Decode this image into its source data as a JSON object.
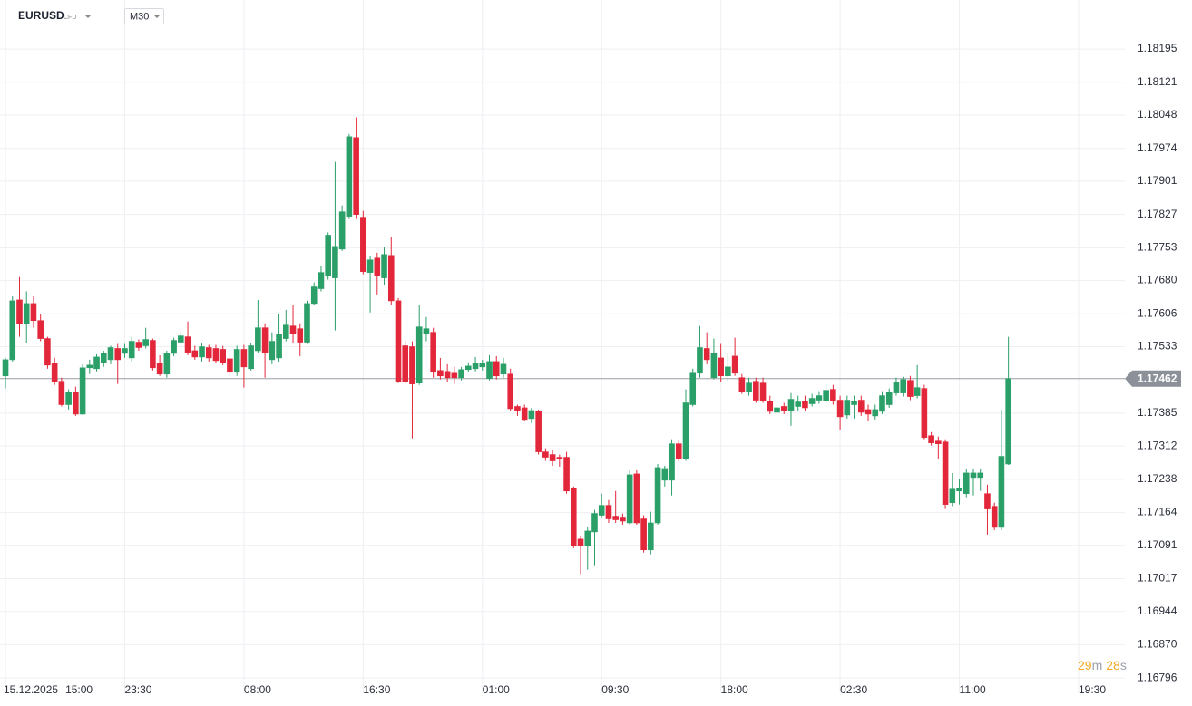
{
  "header": {
    "symbol": "EURUSD",
    "instrument": "CFD",
    "timeframe": "M30"
  },
  "countdown": {
    "minutes": "29",
    "minutes_unit": "m",
    "seconds": "28",
    "seconds_unit": "s"
  },
  "chart_data": {
    "type": "candlestick",
    "date_label": "15.12.2025",
    "up_color": "#2b9f68",
    "down_color": "#e3273b",
    "grid": true,
    "last_price": 1.17462,
    "xlim": [
      -0.78,
      159.6
    ],
    "ylim": [
      1.16762,
      1.18304
    ],
    "xticks": [
      {
        "value": 0,
        "label": "15:00"
      },
      {
        "value": 17,
        "label": "23:30"
      },
      {
        "value": 34,
        "label": "08:00"
      },
      {
        "value": 51,
        "label": "16:30"
      },
      {
        "value": 68,
        "label": "01:00"
      },
      {
        "value": 85,
        "label": "09:30"
      },
      {
        "value": 102,
        "label": "18:00"
      },
      {
        "value": 119,
        "label": "02:30"
      },
      {
        "value": 136,
        "label": "11:00"
      },
      {
        "value": 153,
        "label": "19:30"
      }
    ],
    "yticks": [
      1.18195,
      1.18121,
      1.18048,
      1.17974,
      1.17901,
      1.17827,
      1.17753,
      {
        "value": 1.1768,
        "label": "1.17680"
      },
      1.17606,
      1.17533,
      1.17385,
      1.17312,
      1.17238,
      1.17164,
      1.17091,
      1.17017,
      1.16944,
      {
        "value": 1.1687,
        "label": "1.16870"
      },
      1.16796
    ],
    "x": [
      0,
      1,
      2,
      3,
      4,
      5,
      6,
      7,
      8,
      9,
      10,
      11,
      12,
      13,
      14,
      15,
      16,
      17,
      18,
      19,
      20,
      21,
      22,
      23,
      24,
      25,
      26,
      27,
      28,
      29,
      30,
      31,
      32,
      33,
      34,
      35,
      36,
      37,
      38,
      39,
      40,
      41,
      42,
      43,
      44,
      45,
      46,
      47,
      48,
      49,
      50,
      51,
      52,
      53,
      54,
      55,
      56,
      57,
      58,
      59,
      60,
      61,
      62,
      63,
      64,
      65,
      66,
      67,
      68,
      69,
      70,
      71,
      72,
      73,
      74,
      75,
      76,
      77,
      78,
      79,
      80,
      81,
      82,
      83,
      84,
      85,
      86,
      87,
      88,
      89,
      90,
      91,
      92,
      93,
      94,
      95,
      96,
      97,
      98,
      99,
      100,
      101,
      102,
      103,
      104,
      105,
      106,
      107,
      108,
      109,
      110,
      111,
      112,
      113,
      114,
      115,
      116,
      117,
      118,
      119,
      120,
      121,
      122,
      123,
      124,
      125,
      126,
      127,
      128,
      129,
      130,
      131,
      132,
      133,
      134,
      135,
      136,
      137,
      138,
      139,
      140,
      141,
      142,
      143
    ],
    "open": [
      1.17468,
      1.17504,
      1.17637,
      1.17585,
      1.17629,
      1.17591,
      1.17551,
      1.17496,
      1.17456,
      1.17404,
      1.17432,
      1.17383,
      1.17486,
      1.17484,
      1.17498,
      1.17504,
      1.17529,
      1.17518,
      1.17508,
      1.17543,
      1.17535,
      1.17547,
      1.17496,
      1.17472,
      1.17518,
      1.17543,
      1.17555,
      1.17524,
      1.1751,
      1.17531,
      1.17529,
      1.17527,
      1.17506,
      1.17476,
      1.17527,
      1.17484,
      1.17524,
      1.17575,
      1.17504,
      1.17508,
      1.17551,
      1.17579,
      1.17573,
      1.17543,
      1.17629,
      1.17662,
      1.1769,
      1.17686,
      1.1775,
      1.17823,
      1.17998,
      1.17821,
      1.17698,
      1.1773,
      1.17686,
      1.17736,
      1.17635,
      1.17535,
      1.17533,
      1.17452,
      1.17561,
      1.17565,
      1.1748,
      1.17478,
      1.17474,
      1.17464,
      1.17482,
      1.17484,
      1.17488,
      1.17462,
      1.175,
      1.17472,
      1.17472,
      1.174,
      1.17397,
      1.17373,
      1.17389,
      1.17299,
      1.17293,
      1.17287,
      1.17287,
      1.17218,
      1.17105,
      1.17091,
      1.17121,
      1.17158,
      1.1718,
      1.17156,
      1.17152,
      1.17141,
      1.1725,
      1.1715,
      1.17081,
      1.17141,
      1.17236,
      1.17236,
      1.17317,
      1.17283,
      1.17404,
      1.17474,
      1.17529,
      1.17464,
      1.17508,
      1.17468,
      1.17512,
      1.17464,
      1.17432,
      1.17456,
      1.17452,
      1.17412,
      1.17387,
      1.174,
      1.17391,
      1.174,
      1.17412,
      1.17406,
      1.17414,
      1.17412,
      1.17438,
      1.17414,
      1.17381,
      1.17404,
      1.17414,
      1.17393,
      1.17379,
      1.17389,
      1.17404,
      1.1743,
      1.1743,
      1.17458,
      1.17424,
      1.1744,
      1.17335,
      1.17323,
      1.17321,
      1.17186,
      1.17212,
      1.17206,
      1.17242,
      1.17242,
      1.17206,
      1.17178,
      1.17131,
      1.17272
    ],
    "high": [
      1.17508,
      1.17645,
      1.17688,
      1.17656,
      1.17645,
      1.17605,
      1.17555,
      1.17508,
      1.17464,
      1.17438,
      1.17444,
      1.17494,
      1.17504,
      1.17516,
      1.17524,
      1.17535,
      1.17539,
      1.17539,
      1.17555,
      1.17549,
      1.17575,
      1.17551,
      1.17514,
      1.17524,
      1.17553,
      1.17565,
      1.17589,
      1.17535,
      1.17541,
      1.17537,
      1.17537,
      1.17535,
      1.17512,
      1.17535,
      1.17537,
      1.17541,
      1.17637,
      1.17585,
      1.17565,
      1.17605,
      1.17615,
      1.17625,
      1.17585,
      1.17635,
      1.17676,
      1.17712,
      1.17787,
      1.17944,
      1.17847,
      1.18006,
      1.18043,
      1.17835,
      1.17734,
      1.17742,
      1.17754,
      1.17776,
      1.17641,
      1.17545,
      1.17545,
      1.17625,
      1.17599,
      1.17575,
      1.17508,
      1.17494,
      1.17488,
      1.17488,
      1.17498,
      1.1751,
      1.17504,
      1.17514,
      1.17512,
      1.17508,
      1.17484,
      1.17404,
      1.17404,
      1.17397,
      1.17393,
      1.17307,
      1.17303,
      1.17293,
      1.17299,
      1.17222,
      1.17113,
      1.17131,
      1.1717,
      1.17206,
      1.17192,
      1.17212,
      1.17162,
      1.17258,
      1.17258,
      1.17158,
      1.17166,
      1.17272,
      1.17268,
      1.17327,
      1.17327,
      1.17438,
      1.17484,
      1.17579,
      1.17565,
      1.17551,
      1.17539,
      1.1752,
      1.17553,
      1.17472,
      1.17464,
      1.17464,
      1.17464,
      1.17424,
      1.17412,
      1.17408,
      1.1743,
      1.17424,
      1.17424,
      1.17428,
      1.17434,
      1.17448,
      1.17448,
      1.17424,
      1.17424,
      1.17424,
      1.17424,
      1.17404,
      1.17404,
      1.17434,
      1.1744,
      1.17464,
      1.17466,
      1.17468,
      1.17492,
      1.17448,
      1.17343,
      1.17333,
      1.17327,
      1.17252,
      1.17238,
      1.17262,
      1.17262,
      1.17262,
      1.17226,
      1.17186,
      1.17393,
      1.17555
    ],
    "low": [
      1.1744,
      1.175,
      1.17555,
      1.17541,
      1.17575,
      1.17545,
      1.17484,
      1.17448,
      1.174,
      1.17393,
      1.17379,
      1.17381,
      1.17472,
      1.17478,
      1.17488,
      1.17494,
      1.1745,
      1.17508,
      1.175,
      1.17524,
      1.17529,
      1.1748,
      1.17468,
      1.17464,
      1.17512,
      1.17539,
      1.17514,
      1.17504,
      1.175,
      1.175,
      1.17496,
      1.17492,
      1.17468,
      1.17468,
      1.17442,
      1.1748,
      1.1752,
      1.17464,
      1.17494,
      1.175,
      1.17545,
      1.17541,
      1.17512,
      1.17539,
      1.17625,
      1.17656,
      1.17682,
      1.17569,
      1.17746,
      1.17817,
      1.17817,
      1.17694,
      1.17609,
      1.17649,
      1.1767,
      1.17625,
      1.17452,
      1.17452,
      1.17329,
      1.17448,
      1.17545,
      1.17464,
      1.1746,
      1.17454,
      1.1745,
      1.17458,
      1.17476,
      1.17478,
      1.1748,
      1.17458,
      1.1746,
      1.17464,
      1.17391,
      1.17379,
      1.17367,
      1.17363,
      1.17293,
      1.17279,
      1.17268,
      1.17266,
      1.17206,
      1.17085,
      1.17027,
      1.17037,
      1.17047,
      1.17152,
      1.17141,
      1.17141,
      1.17137,
      1.17137,
      1.17137,
      1.17075,
      1.17071,
      1.17137,
      1.17222,
      1.17202,
      1.17277,
      1.17279,
      1.174,
      1.17464,
      1.17494,
      1.1746,
      1.17454,
      1.17456,
      1.17468,
      1.17428,
      1.17424,
      1.17408,
      1.17408,
      1.17383,
      1.17381,
      1.17383,
      1.17357,
      1.17391,
      1.17389,
      1.174,
      1.17406,
      1.17408,
      1.17404,
      1.17347,
      1.17373,
      1.17373,
      1.17379,
      1.17367,
      1.17371,
      1.17383,
      1.17397,
      1.17424,
      1.17422,
      1.17414,
      1.17418,
      1.17327,
      1.17313,
      1.17283,
      1.17172,
      1.17178,
      1.17182,
      1.17198,
      1.17202,
      1.17212,
      1.17115,
      1.17125,
      1.17125,
      1.1727
    ],
    "close": [
      1.17504,
      1.17635,
      1.17585,
      1.17629,
      1.17591,
      1.17551,
      1.17492,
      1.17456,
      1.17404,
      1.17432,
      1.17383,
      1.17486,
      1.17492,
      1.1751,
      1.17518,
      1.17531,
      1.17504,
      1.17529,
      1.17545,
      1.17531,
      1.17549,
      1.17486,
      1.17472,
      1.17518,
      1.17547,
      1.17557,
      1.1752,
      1.1751,
      1.17533,
      1.17508,
      1.17502,
      1.17498,
      1.17476,
      1.17527,
      1.17488,
      1.17535,
      1.17575,
      1.1752,
      1.17545,
      1.17561,
      1.17581,
      1.17561,
      1.17543,
      1.17629,
      1.17666,
      1.17698,
      1.17781,
      1.17756,
      1.17833,
      1.18,
      1.17827,
      1.177,
      1.17726,
      1.1769,
      1.17738,
      1.17635,
      1.17456,
      1.17456,
      1.1745,
      1.17577,
      1.17573,
      1.17476,
      1.17468,
      1.17464,
      1.17464,
      1.17482,
      1.1749,
      1.17496,
      1.17496,
      1.175,
      1.17468,
      1.17494,
      1.17395,
      1.17391,
      1.17371,
      1.17391,
      1.17299,
      1.17287,
      1.17279,
      1.17283,
      1.17212,
      1.17091,
      1.17091,
      1.17123,
      1.17162,
      1.1718,
      1.1715,
      1.17148,
      1.17145,
      1.17248,
      1.17141,
      1.17081,
      1.17141,
      1.17264,
      1.17262,
      1.17317,
      1.17283,
      1.17408,
      1.17474,
      1.17531,
      1.17504,
      1.17518,
      1.17468,
      1.17488,
      1.17474,
      1.17432,
      1.17452,
      1.17414,
      1.17412,
      1.17389,
      1.17397,
      1.17391,
      1.17416,
      1.1741,
      1.17397,
      1.17418,
      1.17424,
      1.17436,
      1.17412,
      1.17377,
      1.17414,
      1.17412,
      1.17387,
      1.17383,
      1.17393,
      1.17424,
      1.17432,
      1.17454,
      1.1746,
      1.17422,
      1.17442,
      1.17331,
      1.17319,
      1.17317,
      1.17182,
      1.17216,
      1.17218,
      1.17252,
      1.17252,
      1.17252,
      1.17172,
      1.17131,
      1.17289,
      1.17462
    ]
  }
}
